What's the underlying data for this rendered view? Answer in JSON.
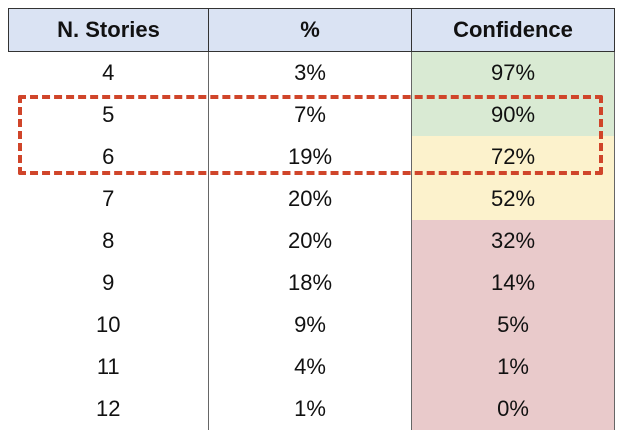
{
  "table": {
    "headers": [
      "N. Stories",
      "%",
      "Confidence"
    ],
    "rows": [
      {
        "stories": "4",
        "pct": "3%",
        "confidence": "97%",
        "level": "high"
      },
      {
        "stories": "5",
        "pct": "7%",
        "confidence": "90%",
        "level": "high"
      },
      {
        "stories": "6",
        "pct": "19%",
        "confidence": "72%",
        "level": "mid"
      },
      {
        "stories": "7",
        "pct": "20%",
        "confidence": "52%",
        "level": "mid"
      },
      {
        "stories": "8",
        "pct": "20%",
        "confidence": "32%",
        "level": "low"
      },
      {
        "stories": "9",
        "pct": "18%",
        "confidence": "14%",
        "level": "low"
      },
      {
        "stories": "10",
        "pct": "9%",
        "confidence": "5%",
        "level": "low"
      },
      {
        "stories": "11",
        "pct": "4%",
        "confidence": "1%",
        "level": "low"
      },
      {
        "stories": "12",
        "pct": "1%",
        "confidence": "0%",
        "level": "low"
      }
    ]
  },
  "colors": {
    "header_bg": "#dae3f3",
    "high": "#d9ead3",
    "mid": "#fcf2cc",
    "low": "#e9cacb",
    "highlight_border": "#d0452a"
  },
  "highlight": {
    "rows": [
      "5",
      "6"
    ]
  }
}
